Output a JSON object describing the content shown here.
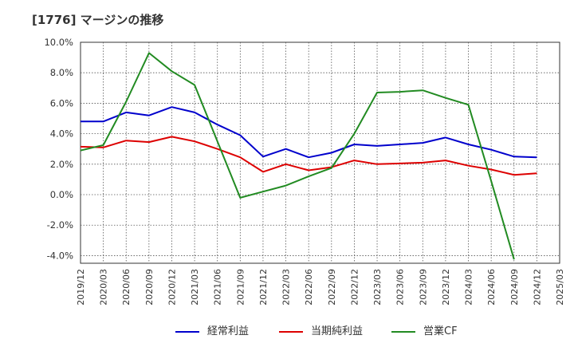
{
  "header": {
    "title": "[1776]  マージンの推移"
  },
  "chart_data": {
    "type": "line",
    "title": "[1776]  マージンの推移",
    "x": [
      "2019/12",
      "2020/03",
      "2020/06",
      "2020/09",
      "2020/12",
      "2021/03",
      "2021/06",
      "2021/09",
      "2021/12",
      "2022/03",
      "2022/06",
      "2022/09",
      "2022/12",
      "2023/03",
      "2023/06",
      "2023/09",
      "2023/12",
      "2024/03",
      "2024/06",
      "2024/09",
      "2024/12",
      "2025/03"
    ],
    "y_ticks": [
      "10.0%",
      "8.0%",
      "6.0%",
      "4.0%",
      "2.0%",
      "0.0%",
      "-2.0%",
      "-4.0%"
    ],
    "ylim": [
      -4.5,
      10.0
    ],
    "grid": true,
    "legend_position": "bottom",
    "series": [
      {
        "name": "経常利益",
        "color": "#0000cc",
        "values": [
          4.8,
          4.8,
          5.4,
          5.2,
          5.75,
          5.4,
          4.6,
          3.9,
          2.5,
          3.0,
          2.45,
          2.75,
          3.3,
          3.2,
          3.3,
          3.4,
          3.75,
          3.3,
          2.95,
          2.5,
          2.45,
          null
        ]
      },
      {
        "name": "当期純利益",
        "color": "#dd0000",
        "values": [
          3.15,
          3.1,
          3.55,
          3.45,
          3.8,
          3.5,
          3.0,
          2.45,
          1.5,
          2.0,
          1.6,
          1.8,
          2.25,
          2.0,
          2.05,
          2.1,
          2.25,
          1.9,
          1.65,
          1.3,
          1.4,
          null
        ]
      },
      {
        "name": "営業CF",
        "color": "#228b22",
        "values": [
          2.9,
          3.25,
          6.1,
          9.3,
          8.1,
          7.2,
          3.5,
          -0.2,
          0.2,
          0.6,
          1.2,
          1.75,
          4.0,
          6.7,
          6.75,
          6.85,
          6.35,
          5.9,
          0.9,
          -4.25,
          null,
          null
        ]
      }
    ]
  }
}
